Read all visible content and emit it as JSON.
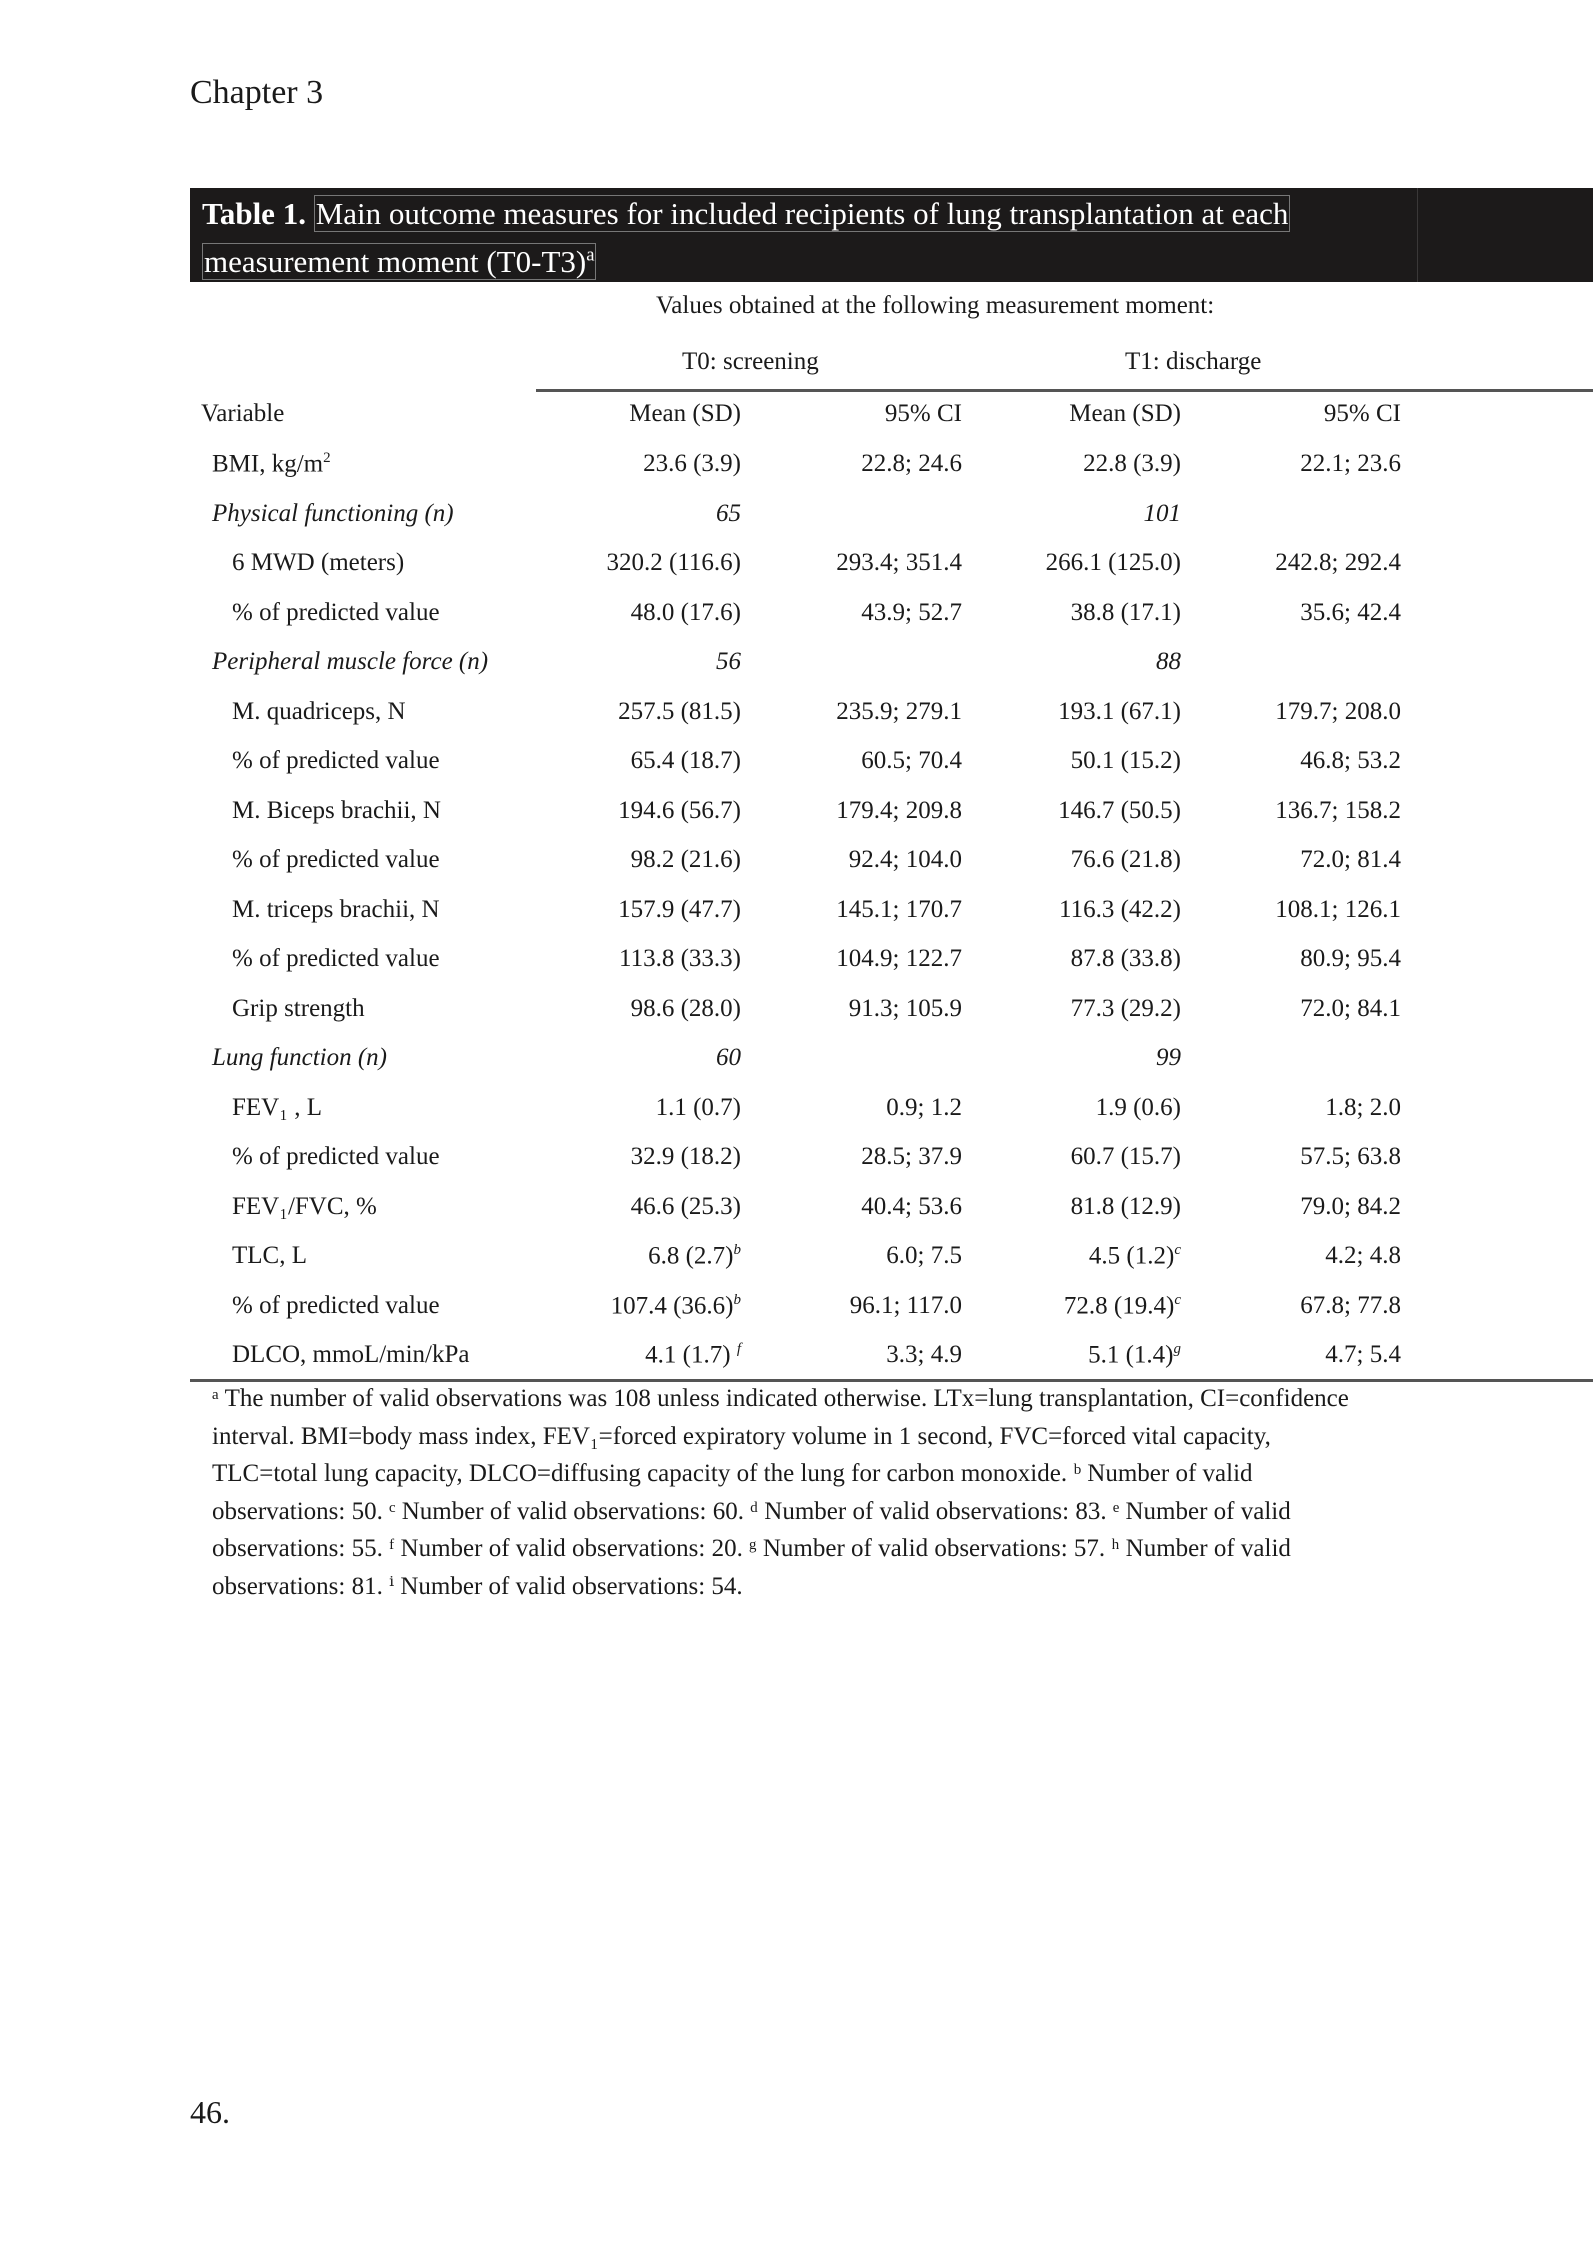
{
  "header": {
    "chapter": "Chapter 3",
    "page_number": "46."
  },
  "title": {
    "label": "Table 1.",
    "line1": "Main outcome measures for included recipients of lung transplantation at each",
    "line2": "measurement moment (T0-T3)",
    "line2_sup": "a"
  },
  "table": {
    "span_header": "Values obtained at the following measurement moment:",
    "groups": [
      "T0: screening",
      "T1: discharge"
    ],
    "columns": [
      "Variable",
      "Mean (SD)",
      "95% CI",
      "Mean (SD)",
      "95% CI"
    ],
    "rows": [
      {
        "label": "BMI, kg/m",
        "label_sup": "2",
        "type": "top",
        "cells": [
          "23.6 (3.9)",
          "22.8; 24.6",
          "22.8 (3.9)",
          "22.1; 23.6"
        ]
      },
      {
        "label": "Physical functioning (n)",
        "type": "section",
        "cells": [
          "65",
          "",
          "101",
          ""
        ]
      },
      {
        "label": "6 MWD (meters)",
        "type": "item",
        "cells": [
          "320.2 (116.6)",
          "293.4; 351.4",
          "266.1 (125.0)",
          "242.8; 292.4"
        ]
      },
      {
        "label": "% of predicted value",
        "type": "item",
        "cells": [
          "48.0 (17.6)",
          "43.9; 52.7",
          "38.8 (17.1)",
          "35.6; 42.4"
        ]
      },
      {
        "label": "Peripheral muscle force (n)",
        "type": "section",
        "cells": [
          "56",
          "",
          "88",
          ""
        ]
      },
      {
        "label": "M. quadriceps, N",
        "type": "item",
        "cells": [
          "257.5 (81.5)",
          "235.9; 279.1",
          "193.1 (67.1)",
          "179.7; 208.0"
        ]
      },
      {
        "label": "% of predicted value",
        "type": "item",
        "cells": [
          "65.4 (18.7)",
          "60.5; 70.4",
          "50.1 (15.2)",
          "46.8; 53.2"
        ]
      },
      {
        "label": "M. Biceps brachii, N",
        "type": "item",
        "cells": [
          "194.6 (56.7)",
          "179.4; 209.8",
          "146.7 (50.5)",
          "136.7; 158.2"
        ]
      },
      {
        "label": "% of predicted value",
        "type": "item",
        "cells": [
          "98.2 (21.6)",
          "92.4; 104.0",
          "76.6 (21.8)",
          "72.0; 81.4"
        ]
      },
      {
        "label": "M. triceps brachii, N",
        "type": "item",
        "cells": [
          "157.9 (47.7)",
          "145.1; 170.7",
          "116.3 (42.2)",
          "108.1; 126.1"
        ]
      },
      {
        "label": "% of predicted value",
        "type": "item",
        "cells": [
          "113.8 (33.3)",
          "104.9; 122.7",
          "87.8 (33.8)",
          "80.9; 95.4"
        ]
      },
      {
        "label": "Grip strength",
        "type": "item",
        "cells": [
          "98.6 (28.0)",
          "91.3; 105.9",
          "77.3 (29.2)",
          "72.0; 84.1"
        ]
      },
      {
        "label": "Lung function (n)",
        "type": "section",
        "cells": [
          "60",
          "",
          "99",
          ""
        ]
      },
      {
        "label": "FEV₁ , L",
        "type": "item",
        "cells": [
          "1.1 (0.7)",
          "0.9; 1.2",
          "1.9 (0.6)",
          "1.8; 2.0"
        ]
      },
      {
        "label": "% of predicted value",
        "type": "item",
        "cells": [
          "32.9 (18.2)",
          "28.5; 37.9",
          "60.7 (15.7)",
          "57.5; 63.8"
        ]
      },
      {
        "label": "FEV₁/FVC, %",
        "type": "item",
        "cells": [
          "46.6 (25.3)",
          "40.4; 53.6",
          "81.8 (12.9)",
          "79.0; 84.2"
        ]
      },
      {
        "label": "TLC, L",
        "type": "item",
        "cells": [
          "6.8 (2.7)",
          "6.0; 7.5",
          "4.5 (1.2)",
          "4.2; 4.8"
        ],
        "sups": [
          "b",
          "",
          "c",
          ""
        ]
      },
      {
        "label": "% of predicted value",
        "type": "item",
        "cells": [
          "107.4 (36.6)",
          "96.1; 117.0",
          "72.8 (19.4)",
          "67.8; 77.8"
        ],
        "sups": [
          "b",
          "",
          "c",
          ""
        ]
      },
      {
        "label": "DLCO, mmoL/min/kPa",
        "type": "item",
        "cells": [
          "4.1 (1.7) ",
          "3.3; 4.9",
          "5.1 (1.4)",
          "4.7; 5.4"
        ],
        "sups": [
          "f",
          "",
          "g",
          ""
        ]
      }
    ]
  },
  "footnote": "ᵃ The number of valid observations was 108 unless indicated otherwise. LTx=lung transplantation, CI=confidence interval. BMI=body mass index, FEV₁=forced expiratory volume in 1 second, FVC=forced vital capacity, TLC=total lung capacity, DLCO=diffusing capacity of the lung for carbon monoxide. ᵇ Number of valid observations: 50. ᶜ Number of valid observations: 60. ᵈ Number of valid observations: 83. ᵉ Number of valid observations: 55. ᶠ Number of valid observations: 20. ᵍ Number of valid observations: 57. ʰ Number of valid observations: 81. ⁱ Number of valid observations: 54."
}
